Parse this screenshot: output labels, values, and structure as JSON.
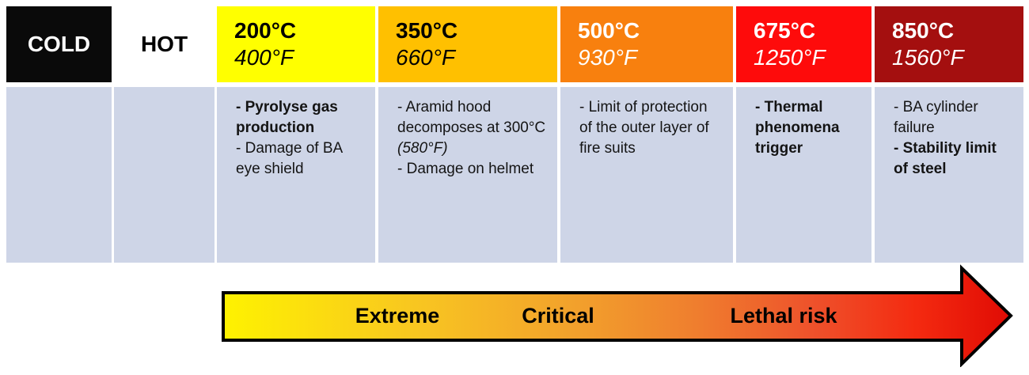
{
  "columns": [
    {
      "label": "COLD",
      "header_bg": "#0A0A0A",
      "header_color": "#FFFFFF",
      "notes": []
    },
    {
      "label": "HOT",
      "header_bg": "#FFFFFF",
      "header_color": "#000000",
      "notes": []
    },
    {
      "celsius": "200°C",
      "fahrenheit": "400°F",
      "header_bg": "#FFFF00",
      "header_color": "#000000",
      "notes": [
        [
          {
            "t": "- Pyrolyse gas production",
            "b": true
          }
        ],
        [
          {
            "t": "- Damage of BA eye shield"
          }
        ]
      ]
    },
    {
      "celsius": "350°C",
      "fahrenheit": "660°F",
      "header_bg": "#FFC000",
      "header_color": "#000000",
      "notes": [
        [
          {
            "t": "- Aramid hood decomposes at 300°C "
          },
          {
            "t": "(580°F)",
            "i": true
          }
        ],
        [
          {
            "t": "- Damage on helmet"
          }
        ]
      ]
    },
    {
      "celsius": "500°C",
      "fahrenheit": "930°F",
      "header_bg": "#F8800E",
      "header_color": "#FFFFFF",
      "notes": [
        [
          {
            "t": "- Limit of protection of the outer layer of fire suits"
          }
        ]
      ]
    },
    {
      "celsius": "675°C",
      "fahrenheit": "1250°F",
      "header_bg": "#FE0B0B",
      "header_color": "#FFFFFF",
      "notes": [
        [
          {
            "t": "- Thermal phenomena trigger",
            "b": true
          }
        ]
      ]
    },
    {
      "celsius": "850°C",
      "fahrenheit": "1560°F",
      "header_bg": "#A40F0F",
      "header_color": "#FFFFFF",
      "notes": [
        [
          {
            "t": "- BA cylinder failure"
          }
        ],
        [
          {
            "t": "- Stability limit of steel",
            "b": true
          }
        ]
      ]
    }
  ],
  "body_bg": "#CED5E7",
  "arrow": {
    "labels": {
      "extreme": "Extreme",
      "critical": "Critical",
      "lethal": "Lethal risk"
    },
    "gradient": [
      "#FEF200",
      "#F8C521",
      "#F2A02C",
      "#EF7E2E",
      "#EE512B",
      "#F42A10",
      "#E00B04"
    ],
    "border_color": "#000000"
  }
}
